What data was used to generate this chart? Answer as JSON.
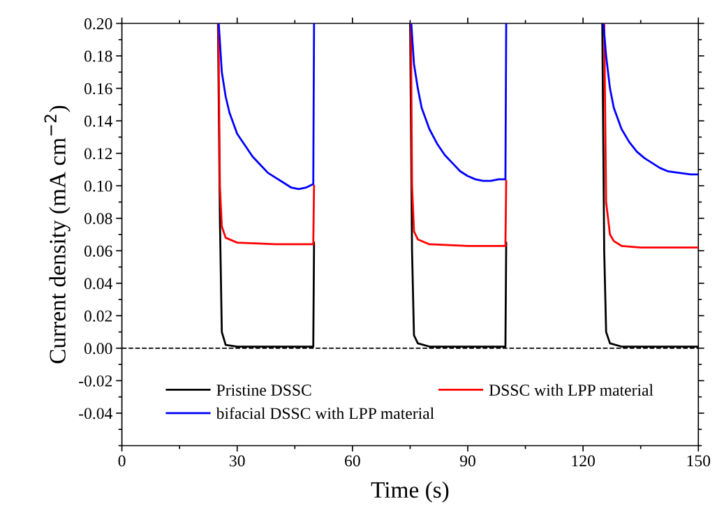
{
  "chart_data": {
    "type": "line",
    "xlabel": "Time (s)",
    "ylabel": "Current density (mA cm$^{−2}$)",
    "xlim": [
      0,
      150
    ],
    "xticks": [
      0,
      30,
      60,
      90,
      120,
      150
    ],
    "ylim": [
      -0.06,
      0.2
    ],
    "yticks": [
      {
        "value": -0.04,
        "label": "-0.04"
      },
      {
        "value": -0.02,
        "label": "-0.02"
      },
      {
        "value": 0,
        "label": "0.00"
      },
      {
        "value": 0.02,
        "label": "0.02"
      },
      {
        "value": 0.04,
        "label": "0.04"
      },
      {
        "value": 0.06,
        "label": "0.06"
      },
      {
        "value": 0.08,
        "label": "0.08"
      },
      {
        "value": 0.1,
        "label": "0.10"
      },
      {
        "value": 0.12,
        "label": "0.12"
      },
      {
        "value": 0.14,
        "label": "0.14"
      },
      {
        "value": 0.16,
        "label": "0.16"
      },
      {
        "value": 0.18,
        "label": "0.18"
      },
      {
        "value": 0.2,
        "label": "0.20"
      }
    ],
    "grid": false,
    "legend": "bottom",
    "marker": "none",
    "line_style": "solid",
    "ref_lines": [
      {
        "axis": "y",
        "value": 0,
        "color": "#000000",
        "line_style": "dashed"
      }
    ],
    "series": [
      {
        "name": "Pristine DSSC",
        "color": "#000000",
        "x": [
          25,
          25.5,
          26,
          27,
          30,
          40,
          49.8,
          50,
          50.1,
          75,
          75.5,
          76,
          77,
          80,
          90,
          99.8,
          100,
          100.1,
          125,
          125.5,
          126,
          127,
          130,
          140,
          150
        ],
        "values": [
          0.2,
          0.08,
          0.01,
          0.002,
          0.001,
          0.001,
          0.001,
          0.065,
          null,
          0.2,
          0.06,
          0.008,
          0.003,
          0.001,
          0.001,
          0.001,
          0.065,
          null,
          0.2,
          0.06,
          0.01,
          0.003,
          0.001,
          0.001,
          0.001
        ]
      },
      {
        "name": "DSSC with LPP material",
        "color": "#ff0000",
        "x": [
          25.1,
          25.5,
          26,
          27,
          30,
          40,
          49.8,
          50,
          50.1,
          75.2,
          75.5,
          76,
          77,
          80,
          90,
          99.8,
          100,
          100.1,
          125.5,
          126,
          127,
          128,
          130,
          135,
          150
        ],
        "values": [
          0.2,
          0.1,
          0.075,
          0.068,
          0.065,
          0.064,
          0.064,
          0.1,
          null,
          0.2,
          0.1,
          0.072,
          0.067,
          0.064,
          0.063,
          0.063,
          0.103,
          null,
          0.2,
          0.09,
          0.07,
          0.066,
          0.063,
          0.062,
          0.062
        ]
      },
      {
        "name": "bifacial DSSC with LPP material",
        "color": "#0000ff",
        "x": [
          25.2,
          26,
          27,
          28,
          30,
          32,
          34,
          36,
          38,
          40,
          42,
          44,
          46,
          48,
          49.8,
          50,
          50.1,
          75.3,
          76,
          77,
          78,
          80,
          82,
          84,
          86,
          88,
          90,
          92,
          94,
          96,
          98,
          99.8,
          100,
          100.1,
          125.3,
          126,
          127,
          128,
          130,
          132,
          134,
          136,
          138,
          140,
          142,
          145,
          148,
          150
        ],
        "values": [
          0.2,
          0.17,
          0.155,
          0.145,
          0.132,
          0.125,
          0.118,
          0.113,
          0.108,
          0.105,
          0.102,
          0.099,
          0.098,
          0.099,
          0.101,
          0.2,
          null,
          0.2,
          0.175,
          0.16,
          0.148,
          0.135,
          0.126,
          0.119,
          0.114,
          0.109,
          0.106,
          0.104,
          0.103,
          0.103,
          0.104,
          0.104,
          0.2,
          null,
          0.2,
          0.18,
          0.16,
          0.148,
          0.135,
          0.127,
          0.121,
          0.117,
          0.114,
          0.111,
          0.109,
          0.108,
          0.107,
          0.107
        ]
      }
    ]
  }
}
